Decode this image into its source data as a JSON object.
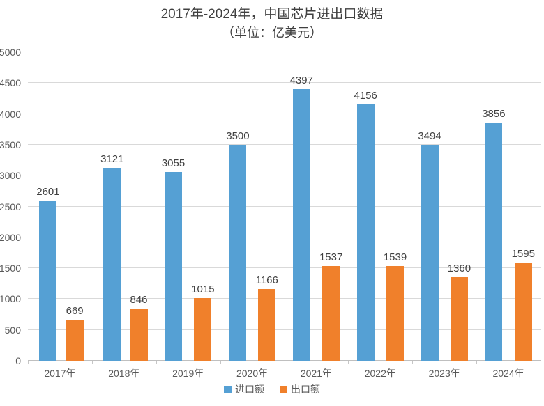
{
  "chart_data": {
    "type": "bar",
    "title": "2017年-2024年，中国芯片进出口数据",
    "subtitle": "（单位：亿美元）",
    "categories": [
      "2017年",
      "2018年",
      "2019年",
      "2020年",
      "2021年",
      "2022年",
      "2023年",
      "2024年"
    ],
    "series": [
      {
        "name": "进口额",
        "color": "#55A0D4",
        "values": [
          2601,
          3121,
          3055,
          3500,
          4397,
          4156,
          3494,
          3856
        ]
      },
      {
        "name": "出口额",
        "color": "#F0802B",
        "values": [
          669,
          846,
          1015,
          1166,
          1537,
          1539,
          1360,
          1595
        ]
      }
    ],
    "xlabel": "",
    "ylabel": "",
    "ylim": [
      0,
      5000
    ],
    "ytick_step": 500,
    "grid": true,
    "legend_position": "bottom",
    "colors": {
      "gridline": "#d9d9d9",
      "axis_text": "#595959",
      "title_text": "#404040"
    }
  }
}
